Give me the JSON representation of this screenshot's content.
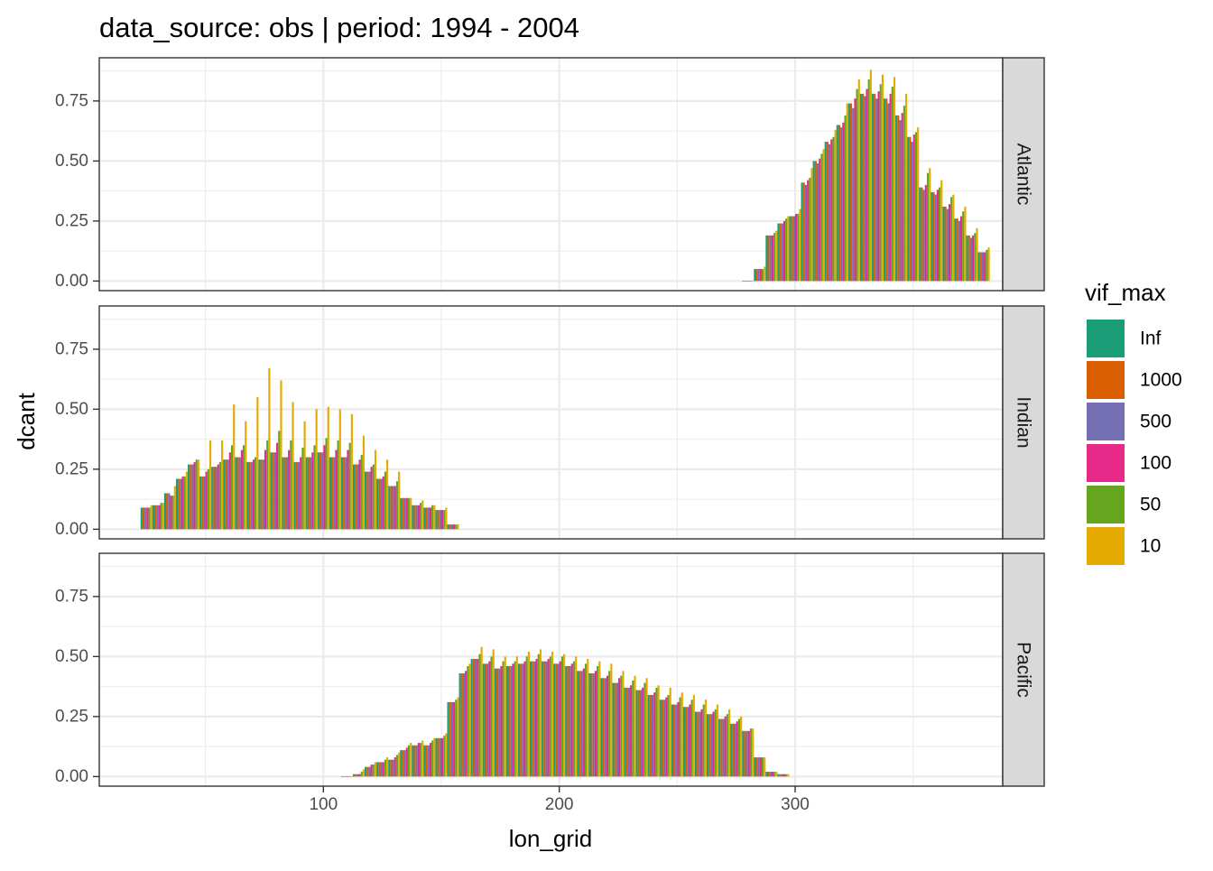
{
  "chart_data": {
    "type": "bar",
    "title": "data_source: obs | period: 1994 - 2004",
    "xlabel": "lon_grid",
    "ylabel": "dcant",
    "xlim": [
      5,
      388
    ],
    "ylim": [
      -0.04,
      0.93
    ],
    "x_ticks": [
      100,
      200,
      300
    ],
    "y_ticks": [
      0,
      0.25,
      0.5,
      0.75
    ],
    "y_tick_labels": [
      "0.00",
      "0.25",
      "0.50",
      "0.75"
    ],
    "grid": true,
    "legend": {
      "title": "vif_max",
      "position": "right",
      "entries": [
        {
          "label": "Inf",
          "color": "#1B9E77"
        },
        {
          "label": "1000",
          "color": "#D95F02"
        },
        {
          "label": "500",
          "color": "#7570B3"
        },
        {
          "label": "100",
          "color": "#E7298A"
        },
        {
          "label": "50",
          "color": "#66A61E"
        },
        {
          "label": "10",
          "color": "#E6AB02"
        }
      ]
    },
    "bar_width_lon": 5,
    "panels": [
      {
        "name": "Atlantic",
        "bars": [
          {
            "x": 280,
            "v": [
              0,
              0,
              0,
              0,
              0,
              0
            ]
          },
          {
            "x": 285,
            "v": [
              0.05,
              0.05,
              0.05,
              0.05,
              0.05,
              0.06
            ]
          },
          {
            "x": 290,
            "v": [
              0.19,
              0.19,
              0.19,
              0.19,
              0.2,
              0.21
            ]
          },
          {
            "x": 295,
            "v": [
              0.24,
              0.24,
              0.24,
              0.25,
              0.26,
              0.27
            ]
          },
          {
            "x": 300,
            "v": [
              0.27,
              0.27,
              0.27,
              0.28,
              0.28,
              0.3
            ]
          },
          {
            "x": 305,
            "v": [
              0.41,
              0.41,
              0.4,
              0.42,
              0.43,
              0.47
            ]
          },
          {
            "x": 310,
            "v": [
              0.5,
              0.5,
              0.49,
              0.51,
              0.53,
              0.55
            ]
          },
          {
            "x": 315,
            "v": [
              0.58,
              0.58,
              0.57,
              0.59,
              0.6,
              0.63
            ]
          },
          {
            "x": 320,
            "v": [
              0.65,
              0.65,
              0.64,
              0.66,
              0.69,
              0.74
            ]
          },
          {
            "x": 325,
            "v": [
              0.74,
              0.74,
              0.72,
              0.76,
              0.8,
              0.84
            ]
          },
          {
            "x": 330,
            "v": [
              0.78,
              0.78,
              0.77,
              0.8,
              0.84,
              0.88
            ]
          },
          {
            "x": 335,
            "v": [
              0.78,
              0.78,
              0.76,
              0.79,
              0.82,
              0.86
            ]
          },
          {
            "x": 340,
            "v": [
              0.76,
              0.76,
              0.74,
              0.78,
              0.81,
              0.85
            ]
          },
          {
            "x": 345,
            "v": [
              0.69,
              0.69,
              0.67,
              0.7,
              0.73,
              0.78
            ]
          },
          {
            "x": 350,
            "v": [
              0.6,
              0.6,
              0.58,
              0.61,
              0.62,
              0.64
            ]
          },
          {
            "x": 355,
            "v": [
              0.39,
              0.39,
              0.38,
              0.4,
              0.45,
              0.47
            ]
          },
          {
            "x": 360,
            "v": [
              0.37,
              0.37,
              0.36,
              0.38,
              0.39,
              0.42
            ]
          },
          {
            "x": 365,
            "v": [
              0.31,
              0.31,
              0.3,
              0.32,
              0.35,
              0.36
            ]
          },
          {
            "x": 370,
            "v": [
              0.26,
              0.26,
              0.25,
              0.27,
              0.29,
              0.31
            ]
          },
          {
            "x": 375,
            "v": [
              0.19,
              0.19,
              0.18,
              0.19,
              0.2,
              0.22
            ]
          },
          {
            "x": 380,
            "v": [
              0.12,
              0.12,
              0.12,
              0.12,
              0.13,
              0.14
            ]
          }
        ]
      },
      {
        "name": "Indian",
        "bars": [
          {
            "x": 25,
            "v": [
              0.09,
              0.09,
              0.09,
              0.09,
              0.09,
              0.1
            ]
          },
          {
            "x": 30,
            "v": [
              0.1,
              0.1,
              0.1,
              0.1,
              0.11,
              0.11
            ]
          },
          {
            "x": 35,
            "v": [
              0.15,
              0.15,
              0.15,
              0.14,
              0.14,
              0.18
            ]
          },
          {
            "x": 40,
            "v": [
              0.21,
              0.21,
              0.21,
              0.22,
              0.22,
              0.24
            ]
          },
          {
            "x": 45,
            "v": [
              0.27,
              0.27,
              0.27,
              0.28,
              0.29,
              0.29
            ]
          },
          {
            "x": 50,
            "v": [
              0.22,
              0.22,
              0.22,
              0.24,
              0.25,
              0.37
            ]
          },
          {
            "x": 55,
            "v": [
              0.26,
              0.26,
              0.26,
              0.27,
              0.28,
              0.37
            ]
          },
          {
            "x": 60,
            "v": [
              0.29,
              0.29,
              0.29,
              0.32,
              0.35,
              0.52
            ]
          },
          {
            "x": 65,
            "v": [
              0.3,
              0.3,
              0.3,
              0.33,
              0.35,
              0.45
            ]
          },
          {
            "x": 70,
            "v": [
              0.28,
              0.28,
              0.28,
              0.29,
              0.3,
              0.55
            ]
          },
          {
            "x": 75,
            "v": [
              0.29,
              0.29,
              0.29,
              0.33,
              0.37,
              0.67
            ]
          },
          {
            "x": 80,
            "v": [
              0.32,
              0.32,
              0.32,
              0.36,
              0.41,
              0.62
            ]
          },
          {
            "x": 85,
            "v": [
              0.3,
              0.3,
              0.3,
              0.33,
              0.37,
              0.53
            ]
          },
          {
            "x": 90,
            "v": [
              0.28,
              0.28,
              0.28,
              0.3,
              0.34,
              0.45
            ]
          },
          {
            "x": 95,
            "v": [
              0.3,
              0.3,
              0.3,
              0.32,
              0.35,
              0.5
            ]
          },
          {
            "x": 100,
            "v": [
              0.32,
              0.32,
              0.32,
              0.35,
              0.38,
              0.51
            ]
          },
          {
            "x": 105,
            "v": [
              0.3,
              0.3,
              0.3,
              0.33,
              0.37,
              0.5
            ]
          },
          {
            "x": 110,
            "v": [
              0.3,
              0.3,
              0.3,
              0.33,
              0.36,
              0.48
            ]
          },
          {
            "x": 115,
            "v": [
              0.27,
              0.27,
              0.27,
              0.29,
              0.31,
              0.39
            ]
          },
          {
            "x": 120,
            "v": [
              0.24,
              0.24,
              0.24,
              0.26,
              0.27,
              0.33
            ]
          },
          {
            "x": 125,
            "v": [
              0.21,
              0.21,
              0.21,
              0.22,
              0.24,
              0.29
            ]
          },
          {
            "x": 130,
            "v": [
              0.18,
              0.18,
              0.18,
              0.18,
              0.2,
              0.24
            ]
          },
          {
            "x": 135,
            "v": [
              0.13,
              0.13,
              0.13,
              0.13,
              0.13,
              0.13
            ]
          },
          {
            "x": 140,
            "v": [
              0.1,
              0.1,
              0.1,
              0.1,
              0.11,
              0.12
            ]
          },
          {
            "x": 145,
            "v": [
              0.09,
              0.09,
              0.09,
              0.09,
              0.1,
              0.1
            ]
          },
          {
            "x": 150,
            "v": [
              0.08,
              0.08,
              0.08,
              0.08,
              0.08,
              0.09
            ]
          },
          {
            "x": 155,
            "v": [
              0.02,
              0.02,
              0.02,
              0.02,
              0.02,
              0.02
            ]
          }
        ]
      },
      {
        "name": "Pacific",
        "bars": [
          {
            "x": 110,
            "v": [
              0,
              0,
              0,
              0,
              0,
              0
            ]
          },
          {
            "x": 115,
            "v": [
              0.01,
              0.01,
              0.01,
              0.01,
              0.02,
              0.03
            ]
          },
          {
            "x": 120,
            "v": [
              0.04,
              0.04,
              0.04,
              0.05,
              0.05,
              0.06
            ]
          },
          {
            "x": 125,
            "v": [
              0.06,
              0.06,
              0.06,
              0.06,
              0.07,
              0.08
            ]
          },
          {
            "x": 130,
            "v": [
              0.07,
              0.07,
              0.07,
              0.08,
              0.09,
              0.1
            ]
          },
          {
            "x": 135,
            "v": [
              0.11,
              0.11,
              0.11,
              0.12,
              0.13,
              0.14
            ]
          },
          {
            "x": 140,
            "v": [
              0.13,
              0.13,
              0.13,
              0.14,
              0.14,
              0.15
            ]
          },
          {
            "x": 145,
            "v": [
              0.13,
              0.13,
              0.13,
              0.14,
              0.15,
              0.16
            ]
          },
          {
            "x": 150,
            "v": [
              0.16,
              0.16,
              0.16,
              0.16,
              0.17,
              0.18
            ]
          },
          {
            "x": 155,
            "v": [
              0.31,
              0.31,
              0.31,
              0.31,
              0.32,
              0.33
            ]
          },
          {
            "x": 160,
            "v": [
              0.43,
              0.43,
              0.43,
              0.44,
              0.46,
              0.47
            ]
          },
          {
            "x": 165,
            "v": [
              0.49,
              0.49,
              0.49,
              0.49,
              0.51,
              0.54
            ]
          },
          {
            "x": 170,
            "v": [
              0.47,
              0.47,
              0.47,
              0.48,
              0.5,
              0.53
            ]
          },
          {
            "x": 175,
            "v": [
              0.45,
              0.45,
              0.45,
              0.46,
              0.48,
              0.5
            ]
          },
          {
            "x": 180,
            "v": [
              0.46,
              0.46,
              0.46,
              0.47,
              0.48,
              0.5
            ]
          },
          {
            "x": 185,
            "v": [
              0.47,
              0.47,
              0.47,
              0.48,
              0.5,
              0.52
            ]
          },
          {
            "x": 190,
            "v": [
              0.48,
              0.48,
              0.48,
              0.49,
              0.51,
              0.53
            ]
          },
          {
            "x": 195,
            "v": [
              0.48,
              0.48,
              0.48,
              0.49,
              0.5,
              0.52
            ]
          },
          {
            "x": 200,
            "v": [
              0.47,
              0.47,
              0.47,
              0.48,
              0.5,
              0.51
            ]
          },
          {
            "x": 205,
            "v": [
              0.46,
              0.46,
              0.46,
              0.47,
              0.48,
              0.5
            ]
          },
          {
            "x": 210,
            "v": [
              0.44,
              0.44,
              0.44,
              0.45,
              0.47,
              0.49
            ]
          },
          {
            "x": 215,
            "v": [
              0.43,
              0.43,
              0.43,
              0.44,
              0.46,
              0.48
            ]
          },
          {
            "x": 220,
            "v": [
              0.41,
              0.41,
              0.41,
              0.42,
              0.44,
              0.47
            ]
          },
          {
            "x": 225,
            "v": [
              0.39,
              0.39,
              0.39,
              0.41,
              0.42,
              0.44
            ]
          },
          {
            "x": 230,
            "v": [
              0.37,
              0.37,
              0.37,
              0.38,
              0.4,
              0.42
            ]
          },
          {
            "x": 235,
            "v": [
              0.36,
              0.36,
              0.36,
              0.37,
              0.39,
              0.41
            ]
          },
          {
            "x": 240,
            "v": [
              0.34,
              0.34,
              0.34,
              0.35,
              0.37,
              0.38
            ]
          },
          {
            "x": 245,
            "v": [
              0.32,
              0.32,
              0.32,
              0.33,
              0.34,
              0.37
            ]
          },
          {
            "x": 250,
            "v": [
              0.3,
              0.3,
              0.3,
              0.31,
              0.33,
              0.35
            ]
          },
          {
            "x": 255,
            "v": [
              0.29,
              0.29,
              0.29,
              0.3,
              0.32,
              0.34
            ]
          },
          {
            "x": 260,
            "v": [
              0.27,
              0.27,
              0.27,
              0.28,
              0.3,
              0.32
            ]
          },
          {
            "x": 265,
            "v": [
              0.26,
              0.26,
              0.26,
              0.27,
              0.28,
              0.3
            ]
          },
          {
            "x": 270,
            "v": [
              0.24,
              0.24,
              0.24,
              0.25,
              0.26,
              0.28
            ]
          },
          {
            "x": 275,
            "v": [
              0.22,
              0.22,
              0.22,
              0.23,
              0.24,
              0.25
            ]
          },
          {
            "x": 280,
            "v": [
              0.19,
              0.19,
              0.19,
              0.19,
              0.2,
              0.2
            ]
          },
          {
            "x": 285,
            "v": [
              0.08,
              0.08,
              0.08,
              0.08,
              0.08,
              0.08
            ]
          },
          {
            "x": 290,
            "v": [
              0.02,
              0.02,
              0.02,
              0.02,
              0.02,
              0.02
            ]
          },
          {
            "x": 295,
            "v": [
              0.01,
              0.01,
              0.01,
              0.01,
              0.01,
              0.01
            ]
          }
        ]
      }
    ]
  }
}
